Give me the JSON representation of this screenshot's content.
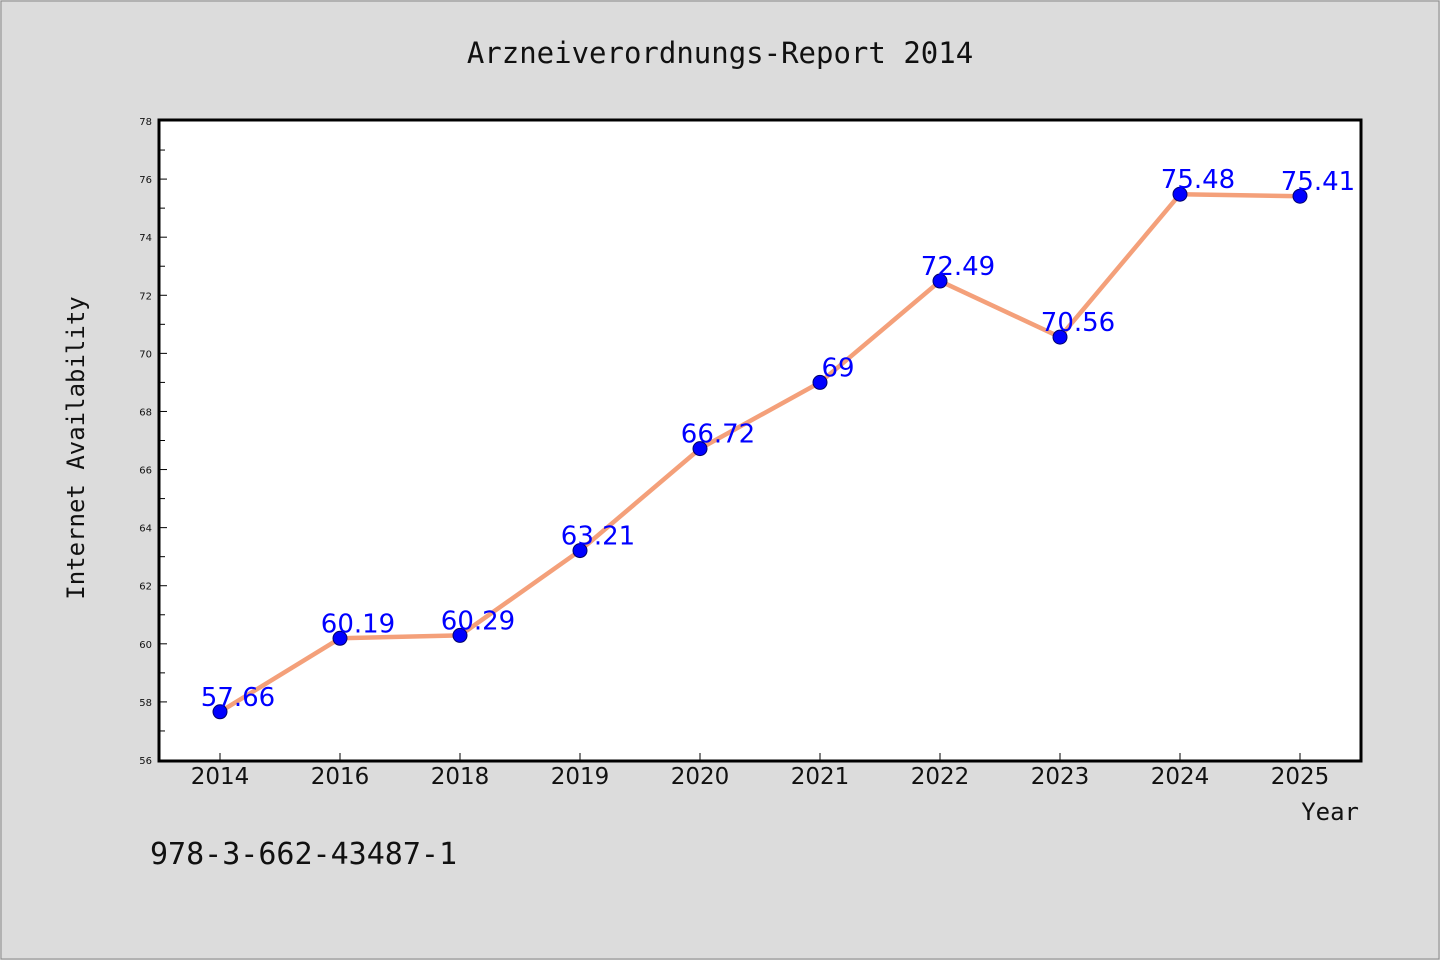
{
  "chart_data": {
    "type": "line",
    "title": "Arzneiverordnungs-Report 2014",
    "xlabel": "Year",
    "ylabel": "Internet Availability",
    "categories": [
      "2014",
      "2016",
      "2018",
      "2019",
      "2020",
      "2021",
      "2022",
      "2023",
      "2024",
      "2025"
    ],
    "values": [
      57.66,
      60.19,
      60.29,
      63.21,
      66.72,
      69,
      72.49,
      70.56,
      75.48,
      75.41
    ],
    "data_labels": [
      "57.66",
      "60.19",
      "60.29",
      "63.21",
      "66.72",
      "69",
      "72.49",
      "70.56",
      "75.48",
      "75.41"
    ],
    "ylim": [
      56,
      78
    ],
    "yticks": [
      "56",
      "58",
      "60",
      "62",
      "64",
      "66",
      "68",
      "70",
      "72",
      "74",
      "76",
      "78"
    ],
    "grid": false,
    "line_color": "#f4a07a",
    "marker_color": "#0000ff",
    "label_color": "#0000ff"
  },
  "footer": {
    "isbn": "978-3-662-43487-1"
  }
}
